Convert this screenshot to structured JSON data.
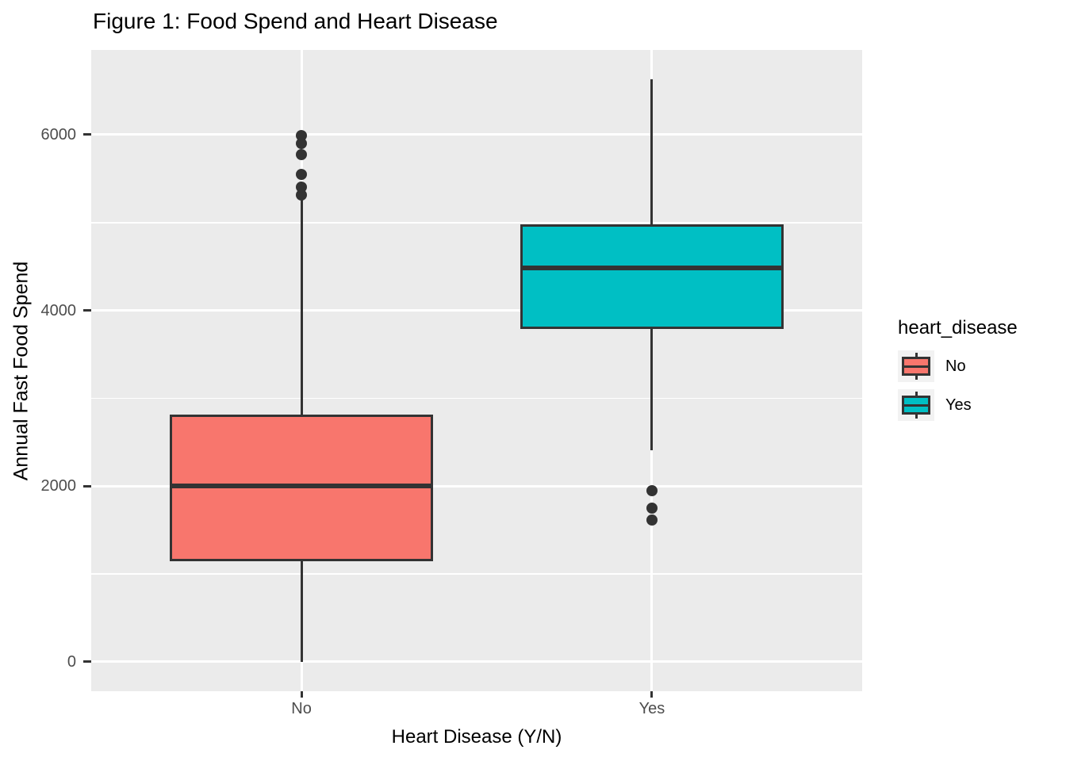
{
  "title": "Figure 1: Food Spend and Heart Disease",
  "colors": {
    "panel_background": "#EBEBEB",
    "gridline": "#FFFFFF",
    "axis_text": "#4D4D4D",
    "box_outline": "#333333",
    "legend_key_background": "#F2F2F2",
    "no_fill": "#F8766D",
    "yes_fill": "#00BFC4"
  },
  "chart_data": {
    "type": "boxplot",
    "title": "Figure 1: Food Spend and Heart Disease",
    "xlabel": "Heart Disease (Y/N)",
    "ylabel": "Annual Fast Food Spend",
    "categories": [
      "No",
      "Yes"
    ],
    "y_ticks": [
      0,
      2000,
      4000,
      6000
    ],
    "y_minor_ticks": [
      1000,
      3000,
      5000
    ],
    "ylim": [
      -334,
      6965
    ],
    "grid": true,
    "legend": {
      "title": "heart_disease",
      "position": "right",
      "entries": [
        {
          "label": "No",
          "color": "#F8766D"
        },
        {
          "label": "Yes",
          "color": "#00BFC4"
        }
      ]
    },
    "boxes": [
      {
        "category": "No",
        "fill": "#F8766D",
        "whisker_low": 0,
        "q1": 1150,
        "median": 2000,
        "q3": 2815,
        "whisker_high": 5260,
        "outliers": [
          5310,
          5400,
          5550,
          5775,
          5900,
          5990
        ]
      },
      {
        "category": "Yes",
        "fill": "#00BFC4",
        "whisker_low": 2410,
        "q1": 3790,
        "median": 4485,
        "q3": 4980,
        "whisker_high": 6630,
        "outliers": [
          1615,
          1750,
          1950
        ]
      }
    ]
  }
}
